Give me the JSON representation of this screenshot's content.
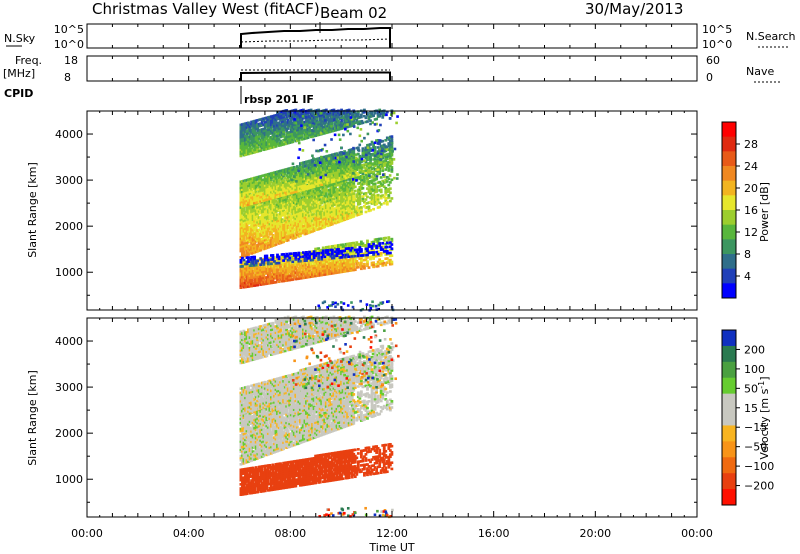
{
  "header": {
    "station": "Christmas Valley West (fitACF)",
    "beam": "Beam 02",
    "date": "30/May/2013"
  },
  "sky_panel": {
    "left_label": "N.Sky",
    "left_ticks": [
      "10^5",
      "10^0"
    ],
    "right_ticks": [
      "10^5",
      "10^0"
    ],
    "right_label": "N.Search"
  },
  "freq_panel": {
    "left_label_line1": "Freq.",
    "left_label_line2": "[MHz]",
    "left_ticks": [
      "18",
      "8"
    ],
    "right_ticks": [
      "60",
      "0"
    ],
    "right_label": "Nave"
  },
  "cpid": {
    "label": "CPID",
    "program": "rbsp 201 IF"
  },
  "chart_data": [
    {
      "type": "heatmap",
      "quantity": "power",
      "x_range_hours": [
        0,
        24
      ],
      "data_x_range_hours": [
        6,
        12
      ],
      "ylim_km": [
        180,
        4500
      ],
      "ylabel": "Slant Range [km]",
      "y_ticks": [
        "1000",
        "2000",
        "3000",
        "4000"
      ],
      "colorbar": {
        "label": "Power [dB]",
        "ticks": [
          "4",
          "8",
          "12",
          "16",
          "20",
          "24",
          "28"
        ],
        "colors": [
          "#0000ff",
          "#2040b8",
          "#2f6e8a",
          "#3c9660",
          "#58b63c",
          "#9cce2e",
          "#e6e62c",
          "#f2b420",
          "#f08820",
          "#e85a18",
          "#e02a10",
          "#ff0000"
        ]
      },
      "bands": [
        {
          "start_km": 640,
          "end_km": 1200,
          "power_db": 26
        },
        {
          "start_km": 1300,
          "end_km": 2500,
          "power_db": 22
        },
        {
          "start_km": 2400,
          "end_km": 2950,
          "power_db": 20
        },
        {
          "start_km": 3500,
          "end_km": 4200,
          "power_db": 14
        },
        {
          "start_km": 1100,
          "end_km": 1300,
          "power_db": 8
        }
      ]
    },
    {
      "type": "heatmap",
      "quantity": "velocity",
      "x_range_hours": [
        0,
        24
      ],
      "data_x_range_hours": [
        6,
        12
      ],
      "ylim_km": [
        180,
        4500
      ],
      "ylabel": "Slant Range [km]",
      "xlabel": "Time UT",
      "y_ticks": [
        "1000",
        "2000",
        "3000",
        "4000"
      ],
      "x_ticks": [
        "00:00",
        "04:00",
        "08:00",
        "12:00",
        "16:00",
        "20:00",
        "00:00"
      ],
      "colorbar": {
        "label": "Velocity [m s^-1]",
        "ticks": [
          "200",
          "100",
          "50",
          "15",
          "−15",
          "−50",
          "−100",
          "−200"
        ],
        "colors": [
          "#1030c0",
          "#2a7a50",
          "#4aa040",
          "#66cc30",
          "#c8c8c0",
          "#c8c8c0",
          "#f8b420",
          "#f89418",
          "#f06a10",
          "#e84010",
          "#ff1000"
        ]
      },
      "bands": [
        {
          "start_km": 640,
          "end_km": 1200,
          "velocity_ms": -100
        },
        {
          "start_km": 1300,
          "end_km": 2500,
          "velocity_ms": 0
        },
        {
          "start_km": 2400,
          "end_km": 2950,
          "velocity_ms": 0
        },
        {
          "start_km": 3500,
          "end_km": 4200,
          "velocity_ms": 0
        }
      ]
    }
  ]
}
